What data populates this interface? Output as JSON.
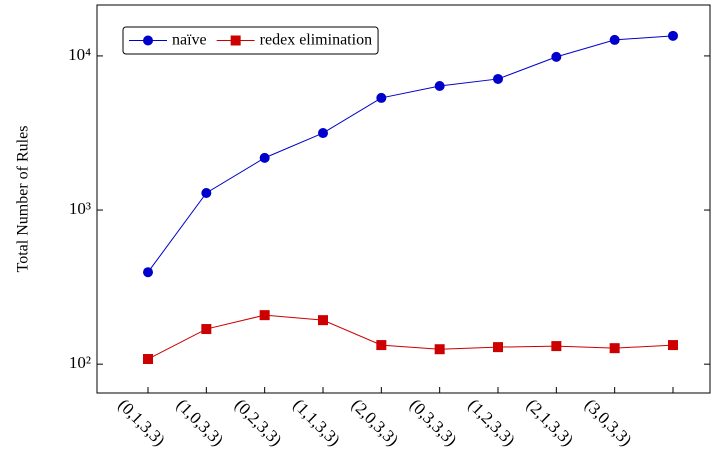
{
  "chart_data": {
    "type": "line",
    "y_label": "Total Number of Rules",
    "categories": [
      "(0,1,3,3)",
      "(1,0,3,3)",
      "(0,2,3,3)",
      "(1,1,3,3)",
      "(2,0,3,3)",
      "(0,3,3,3)",
      "(1,2,3,3)",
      "(2,1,3,3)",
      "(3,0,3,3)",
      ""
    ],
    "series": [
      {
        "name": "naïve",
        "color": "#0000cc",
        "marker": "circle",
        "values": [
          395,
          1290,
          2180,
          3160,
          5340,
          6380,
          7090,
          9860,
          12700,
          13500
        ]
      },
      {
        "name": "redex elimination",
        "color": "#cc0000",
        "marker": "square",
        "values": [
          108,
          169,
          208,
          193,
          133,
          125,
          129,
          131,
          127,
          133
        ]
      }
    ],
    "log_y": true,
    "ylim": [
      65,
      21400
    ],
    "yticks": [
      {
        "value": 100,
        "label": "10²"
      },
      {
        "value": 1000,
        "label": "10³"
      },
      {
        "value": 10000,
        "label": "10⁴"
      }
    ],
    "legend": "top-left"
  }
}
